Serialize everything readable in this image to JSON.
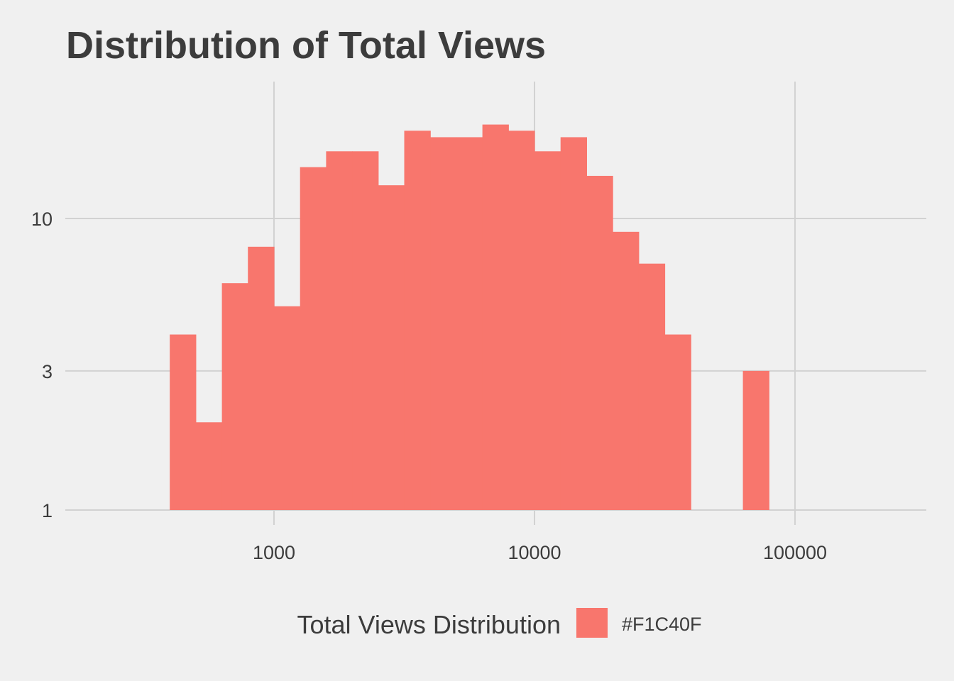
{
  "chart_data": {
    "type": "bar",
    "title": "Distribution of  Total Views",
    "xlabel": "",
    "ylabel": "",
    "x_scale": "log10",
    "y_scale": "log10",
    "xlim": [
      320,
      280000
    ],
    "ylim": [
      1,
      20
    ],
    "x_ticks": [
      {
        "value": 1000,
        "label": "1000"
      },
      {
        "value": 10000,
        "label": "10000"
      },
      {
        "value": 100000,
        "label": "100000"
      }
    ],
    "y_ticks": [
      {
        "value": 1,
        "label": "1"
      },
      {
        "value": 3,
        "label": "3"
      },
      {
        "value": 10,
        "label": "10"
      }
    ],
    "grid": true,
    "bar_color": "#F8766D",
    "bins": [
      {
        "x0": 398,
        "x1": 501,
        "count": 4
      },
      {
        "x0": 501,
        "x1": 631,
        "count": 2
      },
      {
        "x0": 631,
        "x1": 794,
        "count": 6
      },
      {
        "x0": 794,
        "x1": 1000,
        "count": 8
      },
      {
        "x0": 1000,
        "x1": 1259,
        "count": 5
      },
      {
        "x0": 1259,
        "x1": 1585,
        "count": 15
      },
      {
        "x0": 1585,
        "x1": 1995,
        "count": 17
      },
      {
        "x0": 1995,
        "x1": 2512,
        "count": 17
      },
      {
        "x0": 2512,
        "x1": 3162,
        "count": 13
      },
      {
        "x0": 3162,
        "x1": 3981,
        "count": 20
      },
      {
        "x0": 3981,
        "x1": 5012,
        "count": 19
      },
      {
        "x0": 5012,
        "x1": 6310,
        "count": 19
      },
      {
        "x0": 6310,
        "x1": 7943,
        "count": 21
      },
      {
        "x0": 7943,
        "x1": 10000,
        "count": 20
      },
      {
        "x0": 10000,
        "x1": 12589,
        "count": 17
      },
      {
        "x0": 12589,
        "x1": 15849,
        "count": 19
      },
      {
        "x0": 15849,
        "x1": 19953,
        "count": 14
      },
      {
        "x0": 19953,
        "x1": 25119,
        "count": 9
      },
      {
        "x0": 25119,
        "x1": 31623,
        "count": 7
      },
      {
        "x0": 31623,
        "x1": 39811,
        "count": 4
      },
      {
        "x0": 39811,
        "x1": 50119,
        "count": 0
      },
      {
        "x0": 50119,
        "x1": 63096,
        "count": 0
      },
      {
        "x0": 63096,
        "x1": 79433,
        "count": 3
      }
    ],
    "legend": {
      "title": "Total Views Distribution",
      "label": "#F1C40F",
      "position": "bottom"
    }
  }
}
